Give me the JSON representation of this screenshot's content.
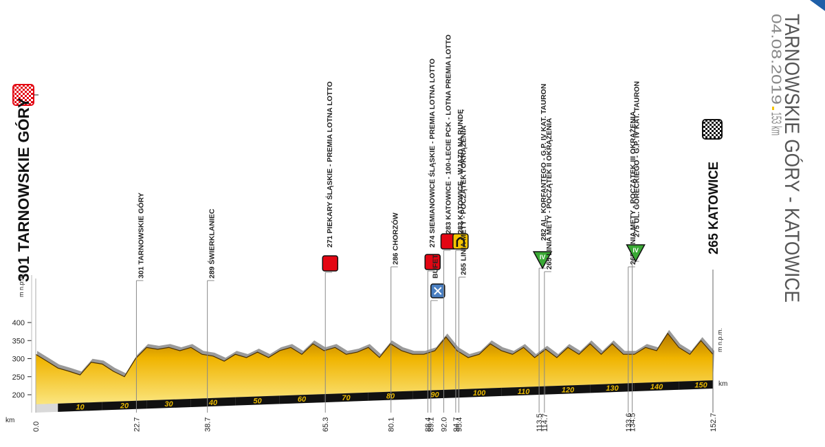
{
  "chart_data": {
    "type": "area",
    "title": "TARNOWSKIE GÓRY - KATOWICE",
    "date": "04.08.2019",
    "distance": "153 km",
    "ylabel": "m n.p.m.",
    "xlabel": "km",
    "start": {
      "label": "301 TARNOWSKIE GÓRY",
      "km": {
        "value": 0,
        "label": "0.0"
      }
    },
    "finish": {
      "label": "265 KATOWICE",
      "km": 152.7
    },
    "x": [
      0,
      2.5,
      5,
      7.5,
      10,
      12.5,
      15,
      17.5,
      20,
      22.5,
      25,
      27.5,
      30,
      32.5,
      35,
      37.5,
      40,
      42.5,
      45,
      47.5,
      50,
      52.5,
      55,
      57.5,
      60,
      62.5,
      65,
      67.5,
      70,
      72.5,
      75,
      77.5,
      80,
      82.5,
      85,
      87.5,
      90,
      92.5,
      95,
      97.5,
      100,
      102.5,
      105,
      107.5,
      110,
      112.5,
      115,
      117.5,
      120,
      122.5,
      125,
      127.5,
      130,
      132.5,
      135,
      137.5,
      140,
      142.5,
      145,
      147.5,
      150,
      152.7
    ],
    "values": [
      312,
      293,
      274,
      265,
      255,
      290,
      285,
      265,
      250,
      300,
      331,
      326,
      331,
      322,
      331,
      312,
      307,
      293,
      312,
      303,
      318,
      303,
      322,
      331,
      312,
      341,
      322,
      331,
      312,
      318,
      331,
      303,
      341,
      322,
      312,
      312,
      322,
      360,
      322,
      303,
      312,
      341,
      322,
      312,
      331,
      303,
      326,
      303,
      331,
      312,
      341,
      312,
      341,
      312,
      312,
      331,
      322,
      370,
      331,
      312,
      350,
      312
    ],
    "color": "#f5c400",
    "shadow_color": "#9a9a9a",
    "xlim": [
      0,
      152.7
    ],
    "ylim": [
      200,
      400
    ],
    "yticks": [
      200,
      250,
      300,
      350,
      400
    ],
    "xticks": [
      10,
      20,
      30,
      40,
      50,
      60,
      70,
      80,
      90,
      100,
      110,
      120,
      130,
      140,
      150
    ],
    "waypoints": [
      {
        "km": 22.7,
        "label": "301 TARNOWSKIE GÓRY"
      },
      {
        "km": 38.7,
        "label": "289 ŚWIERKLANIEC"
      },
      {
        "km": 65.3,
        "label": "271 PIEKARY ŚLĄSKIE - PREMIA LOTNA LOTTO",
        "marker": "square",
        "color": "#e30613"
      },
      {
        "km": 80.1,
        "label": "286 CHORZÓW"
      },
      {
        "km": 88.4,
        "label": "274 SIEMIANOWICE ŚLĄSKIE - PREMIA LOTNA LOTTO",
        "marker": "square",
        "color": "#e30613"
      },
      {
        "km": 89.1,
        "label": "BUFET",
        "marker": "feed",
        "color": "#4a7fc1"
      },
      {
        "km": {
          "value": 92,
          "label": "92.0"
        },
        "label": "283 KATOWICE - 100-LECIE PCK - LOTNA PREMIA LOTTO",
        "marker": "square",
        "color": "#e30613"
      },
      {
        "km": 94.7,
        "label": "283 KATOWICE - WJAZD NA RUNDĘ",
        "marker": "arch",
        "color": "#f5c400"
      },
      {
        "km": 95.4,
        "label": "265 LINIA METY - POCZĄTEK I OKRĄŻENIA"
      },
      {
        "km": 113.5,
        "label": "282 AL. KORFANTEGO - G.P. IV KAT. TAURON",
        "marker": "triangle",
        "color": "#3aa935",
        "sign": "IV"
      },
      {
        "km": 114.7,
        "label": "265 LINIA METY - POCZĄTEK II OKRĄŻENIA"
      },
      {
        "km": 133.6,
        "label": "265 LINIA METY - POCZĄTEK III OKRĄŻENIA"
      },
      {
        "km": 134.5,
        "label": "275 UL. GÓRECKIEGO - G.P. IV KAT. TAURON",
        "marker": "triangle",
        "color": "#3aa935",
        "sign": "IV"
      }
    ]
  }
}
